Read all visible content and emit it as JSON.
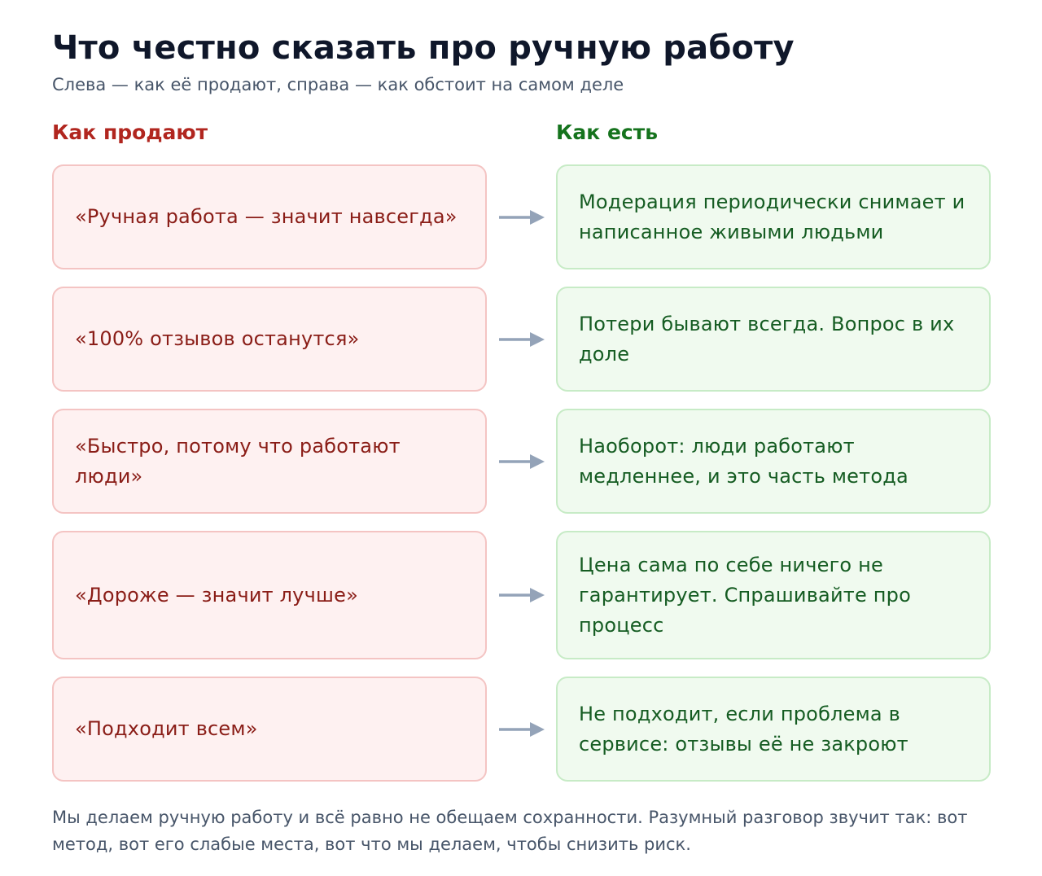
{
  "title": "Что честно сказать про ручную работу",
  "subtitle": "Слева — как её продают, справа — как обстоит на самом деле",
  "columns": {
    "left_heading": "Как продают",
    "right_heading": "Как есть"
  },
  "colors": {
    "myth_text": "#8a1d17",
    "myth_bg": "#fef1f1",
    "myth_border": "#f4c4c3",
    "fact_text": "#155c22",
    "fact_bg": "#f0faef",
    "fact_border": "#c7ebc6",
    "arrow": "#94a3b8"
  },
  "rows": [
    {
      "myth": "«Ручная работа — значит навсегда»",
      "fact": "Модерация периодически снимает и написанное живыми людьми"
    },
    {
      "myth": "«100% отзывов останутся»",
      "fact": "Потери бывают всегда. Вопрос в их доле"
    },
    {
      "myth": "«Быстро, потому что работают люди»",
      "fact": "Наоборот: люди работают медленнее, и это часть метода"
    },
    {
      "myth": "«Дороже — значит лучше»",
      "fact": "Цена сама по себе ничего не гарантирует. Спрашивайте про процесс"
    },
    {
      "myth": "«Подходит всем»",
      "fact": "Не подходит, если проблема в сервисе: отзывы её не закроют"
    }
  ],
  "footer": "Мы делаем ручную работу и всё равно не обещаем сохранности. Разумный разговор звучит так: вот метод, вот его слабые места, вот что мы делаем, чтобы снизить риск."
}
